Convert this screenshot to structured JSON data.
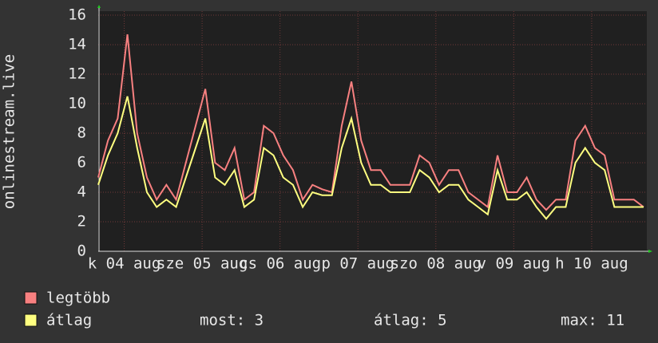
{
  "chart_data": {
    "type": "line",
    "ylabel": "onlinestream.live",
    "x": [
      4,
      7,
      10,
      13,
      16,
      19,
      22,
      25,
      28,
      31,
      34,
      37,
      40,
      43,
      46,
      49,
      52,
      55,
      58,
      61,
      64,
      67,
      70,
      73,
      76,
      79,
      82,
      85,
      88,
      91,
      94,
      97,
      100,
      103,
      106,
      109,
      112,
      115,
      118,
      121,
      124,
      127,
      130,
      133,
      136,
      139,
      142,
      145,
      148,
      151,
      154,
      157,
      160,
      163,
      166,
      169,
      172
    ],
    "series": [
      {
        "name": "legtöbb",
        "color": "#f88080",
        "values": [
          5,
          7.5,
          9,
          14.7,
          8,
          5,
          3.5,
          4.5,
          3.5,
          6,
          8.5,
          11,
          6,
          5.5,
          7,
          3.5,
          4,
          8.5,
          8,
          6.5,
          5.5,
          3.5,
          4.5,
          4.2,
          4,
          8.5,
          11.5,
          7.5,
          5.5,
          5.5,
          4.5,
          4.5,
          4.5,
          6.5,
          6,
          4.5,
          5.5,
          5.5,
          4,
          3.5,
          3,
          6.5,
          4,
          4,
          5,
          3.5,
          2.8,
          3.5,
          3.5,
          7.5,
          8.5,
          7,
          6.5,
          3.5,
          3.5,
          3.5,
          3
        ]
      },
      {
        "name": "átlag",
        "color": "#ffff80",
        "values": [
          4.5,
          6.5,
          8,
          10.5,
          7,
          4,
          3,
          3.5,
          3,
          5,
          7,
          9,
          5,
          4.5,
          5.5,
          3,
          3.5,
          7,
          6.5,
          5,
          4.5,
          3,
          4,
          3.8,
          3.8,
          7,
          9,
          6,
          4.5,
          4.5,
          4,
          4,
          4,
          5.5,
          5,
          4,
          4.5,
          4.5,
          3.5,
          3,
          2.5,
          5.5,
          3.5,
          3.5,
          4,
          3,
          2.2,
          3,
          3,
          6,
          7,
          6,
          5.5,
          3,
          3,
          3,
          3
        ]
      }
    ],
    "xlim": [
      4,
      172.5
    ],
    "xticks": [
      {
        "value": 12,
        "label": "k 04 aug"
      },
      {
        "value": 36,
        "label": "sze 05 aug"
      },
      {
        "value": 60,
        "label": "cs 06 aug"
      },
      {
        "value": 84,
        "label": "p 07 aug"
      },
      {
        "value": 108,
        "label": "szo 08 aug"
      },
      {
        "value": 132,
        "label": "v 09 aug"
      },
      {
        "value": 156,
        "label": "h 10 aug"
      }
    ],
    "ylim": [
      0,
      16
    ],
    "yticks": [
      0,
      2,
      4,
      6,
      8,
      10,
      12,
      14,
      16
    ],
    "grid": true,
    "stats": [
      "most: 3",
      "átlag: 5",
      "max: 11"
    ]
  }
}
